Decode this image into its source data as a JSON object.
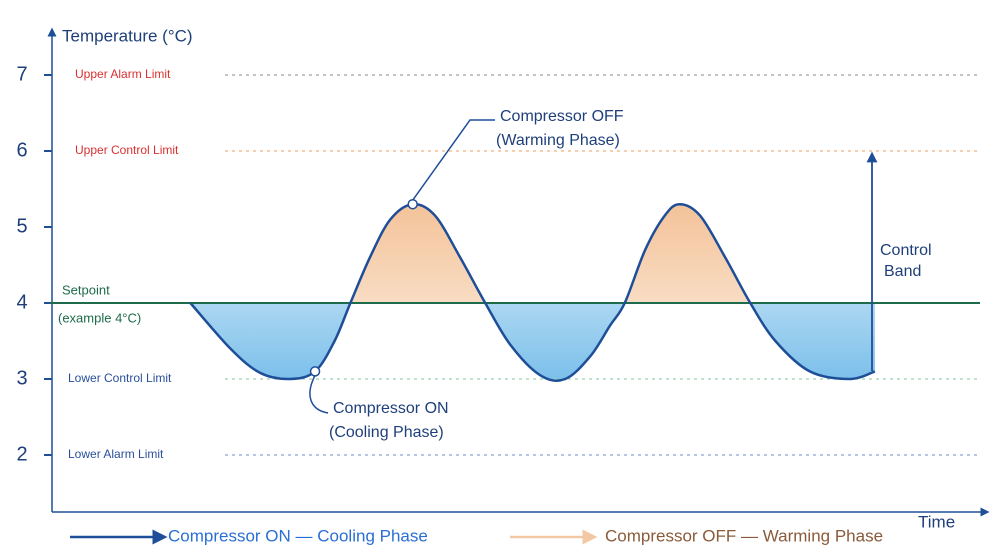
{
  "chart_data": {
    "type": "line",
    "y_label": "Temperature (°C)",
    "x_label": "Time",
    "ylim": [
      1.25,
      7.5
    ],
    "yticks": [
      2,
      3,
      4,
      5,
      6,
      7
    ],
    "xlim": [
      0,
      100
    ],
    "series": [
      {
        "name": "Temperature",
        "color": "#1f4e99",
        "x": [
          15.1,
          19.4,
          22.6,
          25.8,
          28.5,
          30.6,
          32.3,
          34.4,
          36.6,
          39.0,
          41.4,
          44.1,
          46.8,
          49.5,
          52.7,
          55.4,
          58.1,
          60.2,
          61.8,
          64.0,
          66.1,
          67.7,
          69.9,
          72.6,
          75.3,
          78.0,
          81.7,
          86.0,
          88.7
        ],
        "values": [
          4.0,
          3.4,
          3.08,
          3.0,
          3.1,
          3.5,
          4.0,
          4.6,
          5.1,
          5.3,
          5.15,
          4.6,
          4.0,
          3.45,
          3.05,
          3.0,
          3.3,
          3.7,
          4.0,
          4.7,
          5.15,
          5.3,
          5.15,
          4.6,
          4.0,
          3.5,
          3.1,
          3.0,
          3.1
        ]
      }
    ],
    "reference_lines": [
      {
        "label": "Upper Alarm Limit",
        "value": 7,
        "color": "#9aa0a6"
      },
      {
        "label": "Upper Control Limit",
        "value": 6,
        "color": "#f0b080"
      },
      {
        "label": [
          "Setpoint",
          "(example 4°C)"
        ],
        "value": 4,
        "color": "#1d6b4a"
      },
      {
        "label": "Lower Control Limit",
        "value": 3,
        "color": "#9cd0b0"
      },
      {
        "label": "Lower Alarm Limit",
        "value": 2,
        "color": "#8aa0d8"
      }
    ],
    "annotations": [
      {
        "text": [
          "Compressor OFF",
          "(Warming Phase)"
        ],
        "point": 9
      },
      {
        "text": [
          "Compressor ON",
          "(Cooling Phase)"
        ],
        "point": 4
      },
      {
        "text": [
          "Control",
          "Band"
        ]
      }
    ],
    "legend": [
      {
        "name": "Compressor ON — Cooling Phase",
        "color": "#1f4e99"
      },
      {
        "name": "Compressor OFF — Warming Phase",
        "color": "#f2c9a4"
      }
    ]
  }
}
